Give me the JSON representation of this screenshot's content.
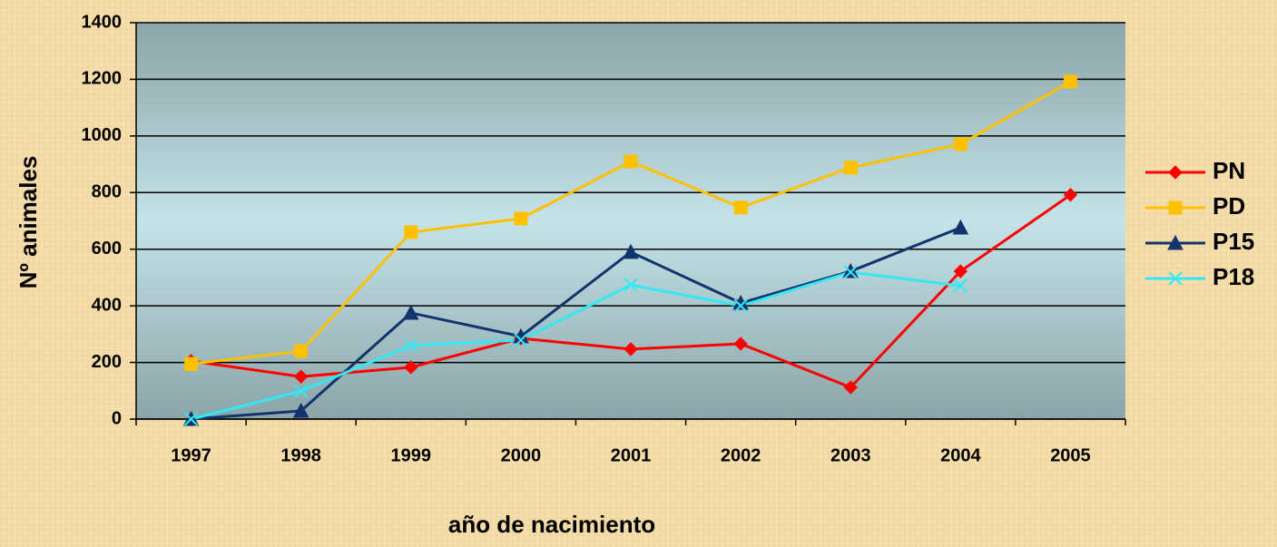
{
  "chart_data": {
    "type": "line",
    "xlabel": "año de nacimiento",
    "ylabel": "Nº animales",
    "categories": [
      "1997",
      "1998",
      "1999",
      "2000",
      "2001",
      "2002",
      "2003",
      "2004",
      "2005"
    ],
    "series": [
      {
        "name": "PN",
        "color": "#ff0000",
        "marker": "diamond",
        "values": [
          205,
          150,
          183,
          285,
          247,
          266,
          112,
          522,
          792
        ]
      },
      {
        "name": "PD",
        "color": "#ffc000",
        "marker": "square",
        "values": [
          195,
          240,
          660,
          708,
          910,
          747,
          888,
          971,
          1192
        ]
      },
      {
        "name": "P15",
        "color": "#12336e",
        "marker": "triangle",
        "values": [
          0,
          29,
          375,
          292,
          590,
          410,
          522,
          676,
          null
        ]
      },
      {
        "name": "P18",
        "color": "#33e8f5",
        "marker": "x",
        "values": [
          0,
          99,
          260,
          279,
          474,
          400,
          519,
          471,
          null
        ]
      }
    ],
    "ylim": [
      0,
      1400
    ],
    "yticks": [
      0,
      200,
      400,
      600,
      800,
      1000,
      1200,
      1400
    ],
    "grid": true,
    "legend": "right"
  }
}
